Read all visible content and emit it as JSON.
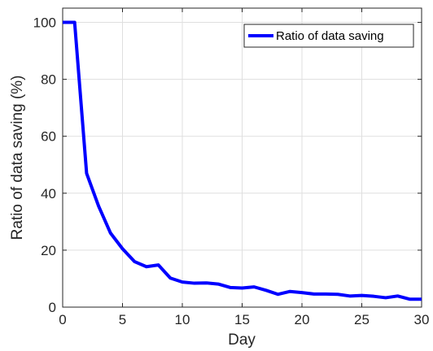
{
  "chart_data": {
    "type": "line",
    "title": "",
    "xlabel": "Day",
    "ylabel": "Ratio of data saving (%)",
    "xlim": [
      0,
      30
    ],
    "ylim": [
      0,
      105
    ],
    "xticks": [
      0,
      5,
      10,
      15,
      20,
      25,
      30
    ],
    "yticks": [
      0,
      20,
      40,
      60,
      80,
      100
    ],
    "grid": true,
    "legend_position": "top-right",
    "series": [
      {
        "name": "Ratio of data saving",
        "color": "#0000ff",
        "x": [
          0,
          1,
          2,
          3,
          4,
          5,
          6,
          7,
          8,
          9,
          10,
          11,
          12,
          13,
          14,
          15,
          16,
          17,
          18,
          19,
          20,
          21,
          22,
          23,
          24,
          25,
          26,
          27,
          28,
          29,
          30
        ],
        "y": [
          100,
          100,
          47,
          35.5,
          26,
          20.5,
          16,
          14.2,
          14.8,
          10.2,
          8.8,
          8.4,
          8.5,
          8.1,
          6.9,
          6.7,
          7.1,
          5.9,
          4.5,
          5.5,
          5.1,
          4.6,
          4.6,
          4.5,
          3.9,
          4.1,
          3.8,
          3.3,
          3.9,
          2.8,
          2.8
        ]
      }
    ]
  }
}
